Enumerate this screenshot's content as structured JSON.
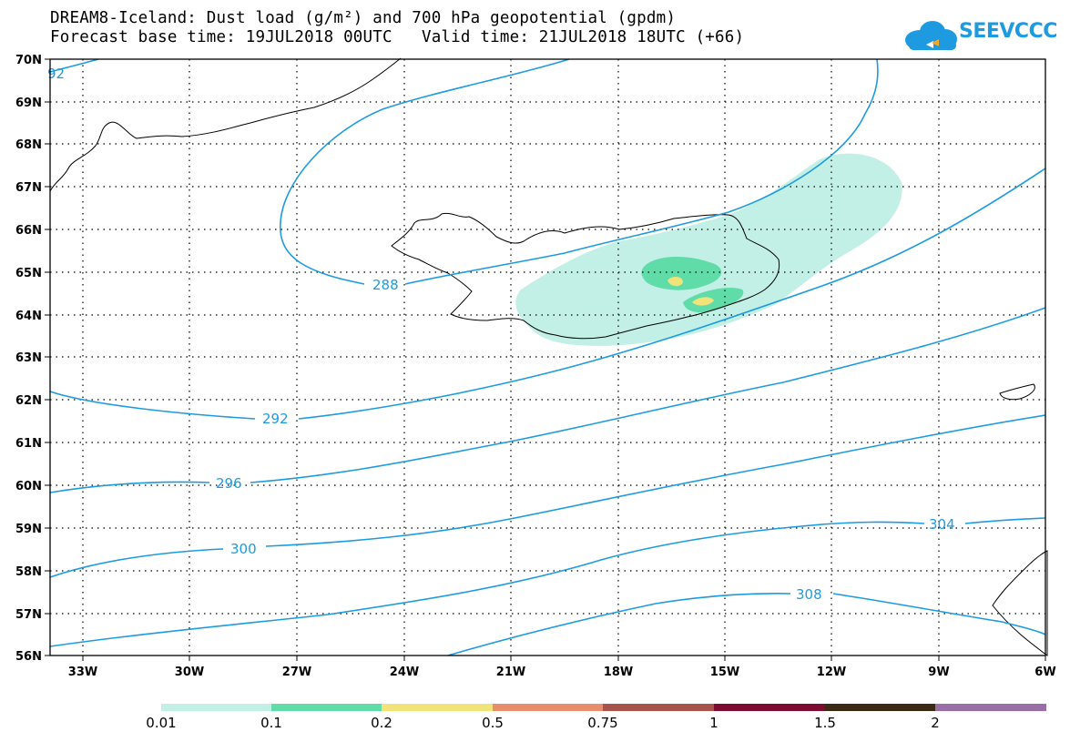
{
  "header": {
    "line1": "DREAM8-Iceland: Dust load (g/m²) and 700 hPa geopotential (gpdm)",
    "line2": "Forecast base time: 19JUL2018 00UTC   Valid time: 21JUL2018 18UTC (+66)"
  },
  "logo": {
    "text": "SEEVCCC",
    "color": "#1e9be0"
  },
  "axes": {
    "lat_labels": [
      "70N",
      "69N",
      "68N",
      "67N",
      "66N",
      "65N",
      "64N",
      "63N",
      "62N",
      "61N",
      "60N",
      "59N",
      "58N",
      "57N",
      "56N"
    ],
    "lon_labels": [
      "33W",
      "30W",
      "27W",
      "24W",
      "21W",
      "18W",
      "15W",
      "12W",
      "9W",
      "6W"
    ]
  },
  "contours": {
    "color": "#1e9be0",
    "labels": [
      "92",
      "288",
      "292",
      "296",
      "300",
      "304",
      "308"
    ]
  },
  "colorbar": {
    "labels": [
      "0.01",
      "0.1",
      "0.2",
      "0.5",
      "0.75",
      "1",
      "1.5",
      "2"
    ],
    "colors": [
      "#c3f0e6",
      "#5fdca8",
      "#f2e27a",
      "#e88e6a",
      "#a8544a",
      "#7d0c30",
      "#3d2a14",
      "#9a6ea6"
    ]
  }
}
